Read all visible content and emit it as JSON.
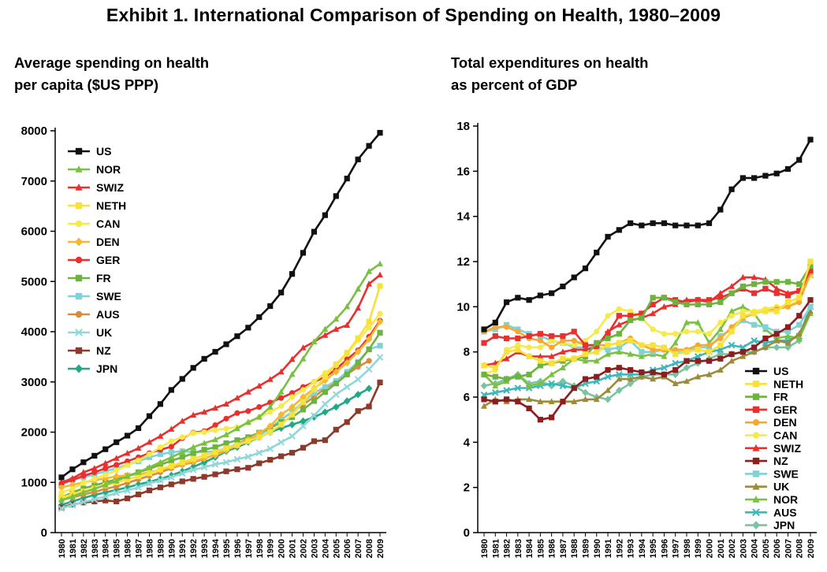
{
  "title": "Exhibit 1. International Comparison of Spending on Health, 1980–2009",
  "colors": {
    "US": "#111111",
    "NOR": "#7ac143",
    "SWIZ": "#e8312f",
    "NETH": "#f7e13b",
    "CAN": "#f4ea4a",
    "DEN": "#f7b733",
    "GER": "#e8312f",
    "FR": "#6db33f",
    "SWE": "#7fd3d8",
    "AUS": "#d98a3a",
    "UK": "#8fd7d9",
    "NZ": "#8b3a2b",
    "JPN": "#22a887"
  },
  "chart_data": [
    {
      "type": "line",
      "title": "Average spending on health\nper capita ($US PPP)",
      "xlabel": "",
      "ylabel": "",
      "ylim": [
        0,
        8000
      ],
      "yticks": [
        0,
        1000,
        2000,
        3000,
        4000,
        5000,
        6000,
        7000,
        8000
      ],
      "x": [
        "1980",
        "1981",
        "1982",
        "1983",
        "1984",
        "1985",
        "1986",
        "1987",
        "1988",
        "1989",
        "1990",
        "1991",
        "1992",
        "1993",
        "1994",
        "1995",
        "1996",
        "1997",
        "1998",
        "1999",
        "2000",
        "2001",
        "2002",
        "2003",
        "2004",
        "2005",
        "2006",
        "2007",
        "2008",
        "2009"
      ],
      "legend_position": "top-left",
      "series": [
        {
          "name": "US",
          "color": "#111111",
          "marker": "square",
          "values": [
            1100,
            1260,
            1400,
            1530,
            1660,
            1800,
            1930,
            2080,
            2320,
            2560,
            2840,
            3060,
            3280,
            3460,
            3600,
            3750,
            3910,
            4080,
            4290,
            4510,
            4780,
            5150,
            5570,
            5990,
            6320,
            6700,
            7050,
            7430,
            7700,
            7960
          ]
        },
        {
          "name": "NOR",
          "color": "#7ac143",
          "marker": "triangle",
          "values": [
            650,
            720,
            800,
            870,
            950,
            1030,
            1120,
            1200,
            1300,
            1400,
            1500,
            1600,
            1700,
            1780,
            1850,
            1950,
            2070,
            2200,
            2300,
            2500,
            2800,
            3150,
            3460,
            3800,
            4050,
            4250,
            4500,
            4850,
            5200,
            5350
          ]
        },
        {
          "name": "SWIZ",
          "color": "#e8312f",
          "marker": "triangle",
          "values": [
            1000,
            1080,
            1200,
            1280,
            1380,
            1480,
            1580,
            1680,
            1800,
            1920,
            2060,
            2220,
            2340,
            2400,
            2480,
            2560,
            2680,
            2800,
            2920,
            3050,
            3200,
            3450,
            3680,
            3800,
            3930,
            4050,
            4130,
            4470,
            4950,
            5130
          ]
        },
        {
          "name": "NETH",
          "color": "#f7e13b",
          "marker": "square",
          "values": [
            700,
            760,
            820,
            880,
            940,
            1000,
            1060,
            1120,
            1180,
            1260,
            1330,
            1400,
            1470,
            1540,
            1600,
            1680,
            1740,
            1820,
            1900,
            2000,
            2150,
            2350,
            2600,
            2850,
            3100,
            3350,
            3580,
            3870,
            4200,
            4910
          ]
        },
        {
          "name": "CAN",
          "color": "#f4ea4a",
          "marker": "circle",
          "values": [
            800,
            870,
            990,
            1070,
            1150,
            1240,
            1340,
            1440,
            1560,
            1700,
            1820,
            1900,
            1980,
            2000,
            2040,
            2070,
            2100,
            2180,
            2300,
            2400,
            2520,
            2700,
            2840,
            3000,
            3180,
            3330,
            3560,
            3830,
            4080,
            4360
          ]
        },
        {
          "name": "DEN",
          "color": "#f7b733",
          "marker": "diamond",
          "values": [
            900,
            950,
            1000,
            1040,
            1080,
            1120,
            1140,
            1160,
            1200,
            1250,
            1300,
            1360,
            1420,
            1480,
            1540,
            1640,
            1740,
            1850,
            1980,
            2120,
            2350,
            2500,
            2700,
            2870,
            3030,
            3200,
            3380,
            3600,
            3850,
            4200
          ]
        },
        {
          "name": "GER",
          "color": "#e8312f",
          "marker": "circle",
          "values": [
            980,
            1050,
            1130,
            1200,
            1280,
            1350,
            1420,
            1500,
            1580,
            1650,
            1710,
            1880,
            1990,
            2020,
            2140,
            2270,
            2380,
            2420,
            2500,
            2590,
            2680,
            2780,
            2900,
            3000,
            3100,
            3250,
            3450,
            3630,
            3900,
            4220
          ]
        },
        {
          "name": "FR",
          "color": "#6db33f",
          "marker": "square",
          "values": [
            700,
            800,
            880,
            940,
            1000,
            1060,
            1130,
            1200,
            1270,
            1350,
            1430,
            1500,
            1580,
            1650,
            1700,
            1780,
            1840,
            1900,
            1990,
            2080,
            2200,
            2300,
            2450,
            2620,
            2800,
            2970,
            3150,
            3380,
            3650,
            3980
          ]
        },
        {
          "name": "SWE",
          "color": "#7fd3d8",
          "marker": "square",
          "values": [
            950,
            1050,
            1100,
            1160,
            1220,
            1280,
            1350,
            1420,
            1500,
            1560,
            1600,
            1620,
            1600,
            1600,
            1620,
            1680,
            1760,
            1840,
            1940,
            2070,
            2250,
            2400,
            2600,
            2780,
            2900,
            3020,
            3200,
            3400,
            3650,
            3720
          ]
        },
        {
          "name": "AUS",
          "color": "#d98a3a",
          "marker": "circle",
          "values": [
            650,
            700,
            760,
            810,
            870,
            920,
            990,
            1060,
            1130,
            1200,
            1280,
            1350,
            1400,
            1470,
            1560,
            1650,
            1760,
            1870,
            1960,
            2080,
            2250,
            2400,
            2550,
            2700,
            2870,
            3000,
            3150,
            3300,
            3420,
            null
          ]
        },
        {
          "name": "UK",
          "color": "#8fd7d9",
          "marker": "x",
          "values": [
            480,
            550,
            610,
            660,
            720,
            790,
            840,
            900,
            980,
            1040,
            1100,
            1180,
            1250,
            1300,
            1360,
            1400,
            1460,
            1510,
            1590,
            1670,
            1800,
            1920,
            2120,
            2330,
            2560,
            2750,
            2900,
            3050,
            3250,
            3490
          ]
        },
        {
          "name": "NZ",
          "color": "#8b3a2b",
          "marker": "square",
          "values": [
            500,
            560,
            600,
            620,
            640,
            620,
            680,
            760,
            840,
            900,
            960,
            1020,
            1070,
            1110,
            1160,
            1220,
            1260,
            1290,
            1380,
            1450,
            1520,
            1590,
            1690,
            1820,
            1840,
            2050,
            2200,
            2420,
            2510,
            2990
          ]
        },
        {
          "name": "JPN",
          "color": "#22a887",
          "marker": "diamond",
          "values": [
            550,
            620,
            690,
            750,
            800,
            850,
            900,
            960,
            1010,
            1070,
            1140,
            1220,
            1310,
            1400,
            1500,
            1620,
            1700,
            1800,
            1900,
            2000,
            2080,
            2150,
            2220,
            2300,
            2400,
            2500,
            2620,
            2750,
            2870,
            null
          ]
        }
      ]
    },
    {
      "type": "line",
      "title": "Total expenditures on health\nas percent of GDP",
      "xlabel": "",
      "ylabel": "",
      "ylim": [
        0,
        18
      ],
      "yticks": [
        0,
        2,
        4,
        6,
        8,
        10,
        12,
        14,
        16,
        18
      ],
      "x": [
        "1980",
        "1981",
        "1982",
        "1983",
        "1984",
        "1985",
        "1986",
        "1987",
        "1988",
        "1989",
        "1990",
        "1991",
        "1992",
        "1993",
        "1994",
        "1995",
        "1996",
        "1997",
        "1998",
        "1999",
        "2000",
        "2001",
        "2002",
        "2003",
        "2004",
        "2005",
        "2006",
        "2007",
        "2008",
        "2009"
      ],
      "legend_position": "bottom-right",
      "series": [
        {
          "name": "US",
          "color": "#111111",
          "marker": "square",
          "values": [
            9.0,
            9.3,
            10.2,
            10.4,
            10.3,
            10.5,
            10.6,
            10.9,
            11.3,
            11.7,
            12.4,
            13.1,
            13.4,
            13.7,
            13.6,
            13.7,
            13.7,
            13.6,
            13.6,
            13.6,
            13.7,
            14.3,
            15.2,
            15.7,
            15.7,
            15.8,
            15.9,
            16.1,
            16.5,
            17.4
          ]
        },
        {
          "name": "NETH",
          "color": "#f7e13b",
          "marker": "square",
          "values": [
            7.4,
            7.3,
            8.0,
            8.1,
            7.8,
            7.6,
            7.5,
            7.7,
            7.7,
            7.9,
            8.0,
            8.3,
            8.4,
            8.5,
            8.3,
            8.3,
            8.2,
            7.9,
            8.0,
            8.1,
            8.0,
            8.3,
            8.9,
            9.6,
            9.7,
            9.8,
            9.8,
            10.2,
            10.4,
            12.0
          ]
        },
        {
          "name": "FR",
          "color": "#6db33f",
          "marker": "square",
          "values": [
            7.0,
            6.9,
            6.8,
            6.9,
            7.0,
            7.4,
            7.5,
            7.6,
            7.7,
            7.8,
            8.4,
            8.6,
            8.8,
            9.4,
            9.5,
            10.4,
            10.4,
            10.2,
            10.1,
            10.1,
            10.1,
            10.2,
            10.6,
            10.9,
            11.0,
            11.1,
            11.1,
            11.1,
            11.0,
            11.8
          ]
        },
        {
          "name": "GER",
          "color": "#e8312f",
          "marker": "square",
          "values": [
            8.4,
            8.7,
            8.6,
            8.6,
            8.7,
            8.8,
            8.7,
            8.7,
            8.9,
            8.3,
            8.3,
            8.8,
            9.6,
            9.6,
            9.7,
            10.1,
            10.4,
            10.3,
            10.2,
            10.3,
            10.3,
            10.4,
            10.6,
            10.8,
            10.6,
            10.8,
            10.6,
            10.5,
            10.7,
            11.6
          ]
        },
        {
          "name": "DEN",
          "color": "#f7a833",
          "marker": "circle",
          "values": [
            8.9,
            9.1,
            9.1,
            8.9,
            8.6,
            8.5,
            8.2,
            8.5,
            8.5,
            8.3,
            8.3,
            8.3,
            8.4,
            8.6,
            8.3,
            8.1,
            8.1,
            8.1,
            8.1,
            8.3,
            8.3,
            8.6,
            9.1,
            9.5,
            9.7,
            9.8,
            9.9,
            10.0,
            10.2,
            11.5
          ]
        },
        {
          "name": "CAN",
          "color": "#f4ea4a",
          "marker": "circle",
          "values": [
            7.0,
            7.2,
            8.1,
            8.3,
            8.2,
            8.2,
            8.5,
            8.4,
            8.3,
            8.5,
            8.9,
            9.6,
            9.9,
            9.8,
            9.5,
            9.0,
            8.8,
            8.8,
            8.9,
            8.9,
            8.8,
            9.3,
            9.6,
            9.8,
            9.8,
            9.9,
            10.0,
            10.0,
            10.3,
            11.4
          ]
        },
        {
          "name": "SWIZ",
          "color": "#e8312f",
          "marker": "triangle",
          "values": [
            7.4,
            7.5,
            7.7,
            8.0,
            7.8,
            7.8,
            7.8,
            8.0,
            8.1,
            8.1,
            8.2,
            8.9,
            9.2,
            9.4,
            9.5,
            9.7,
            10.0,
            10.1,
            10.3,
            10.3,
            10.2,
            10.6,
            10.9,
            11.3,
            11.3,
            11.2,
            10.8,
            10.6,
            10.7,
            11.4
          ]
        },
        {
          "name": "NZ",
          "color": "#8b1e1e",
          "marker": "square",
          "values": [
            5.9,
            5.8,
            5.9,
            5.8,
            5.5,
            5.0,
            5.1,
            5.8,
            6.4,
            6.8,
            6.9,
            7.2,
            7.3,
            7.2,
            7.1,
            7.1,
            7.0,
            7.2,
            7.6,
            7.6,
            7.6,
            7.7,
            7.9,
            8.0,
            8.2,
            8.6,
            8.8,
            9.1,
            9.6,
            10.3
          ]
        },
        {
          "name": "SWE",
          "color": "#7fd3d8",
          "marker": "square",
          "values": [
            8.9,
            9.0,
            9.2,
            9.0,
            8.8,
            8.7,
            8.5,
            8.4,
            8.2,
            8.2,
            8.2,
            8.1,
            8.2,
            8.5,
            8.0,
            8.0,
            8.1,
            8.0,
            8.0,
            8.2,
            8.2,
            8.7,
            9.0,
            9.4,
            9.2,
            9.1,
            8.9,
            8.9,
            9.2,
            10.0
          ]
        },
        {
          "name": "UK",
          "color": "#9b8b3b",
          "marker": "triangle",
          "values": [
            5.6,
            5.9,
            5.8,
            5.9,
            5.9,
            5.8,
            5.8,
            5.8,
            5.8,
            5.9,
            5.9,
            6.3,
            6.8,
            6.8,
            6.9,
            6.8,
            6.9,
            6.6,
            6.7,
            6.9,
            7.0,
            7.2,
            7.6,
            7.8,
            8.0,
            8.2,
            8.5,
            8.4,
            8.8,
            9.8
          ]
        },
        {
          "name": "NOR",
          "color": "#7ac143",
          "marker": "triangle",
          "values": [
            7.0,
            6.5,
            6.7,
            7.0,
            6.5,
            6.6,
            7.0,
            7.3,
            7.7,
            7.6,
            7.6,
            7.9,
            8.0,
            7.9,
            7.8,
            7.9,
            7.8,
            8.4,
            9.3,
            9.3,
            8.4,
            9.0,
            9.8,
            10.0,
            9.7,
            9.0,
            8.6,
            8.7,
            8.6,
            9.7
          ]
        },
        {
          "name": "AUS",
          "color": "#3bb8bb",
          "marker": "x",
          "values": [
            6.1,
            6.2,
            6.3,
            6.4,
            6.4,
            6.5,
            6.6,
            6.5,
            6.4,
            6.6,
            6.7,
            6.9,
            7.0,
            7.0,
            7.0,
            7.2,
            7.3,
            7.5,
            7.6,
            7.8,
            8.0,
            8.1,
            8.3,
            8.2,
            8.5,
            8.4,
            8.5,
            8.5,
            8.7,
            10.0
          ]
        },
        {
          "name": "JPN",
          "color": "#7cc3a2",
          "marker": "diamond",
          "values": [
            6.5,
            6.6,
            6.8,
            7.0,
            6.6,
            6.7,
            6.5,
            6.7,
            6.5,
            6.2,
            6.0,
            5.9,
            6.3,
            6.6,
            6.9,
            7.0,
            7.0,
            7.0,
            7.3,
            7.5,
            7.7,
            7.9,
            7.9,
            8.0,
            8.0,
            8.2,
            8.2,
            8.2,
            8.5,
            null
          ]
        }
      ]
    }
  ]
}
